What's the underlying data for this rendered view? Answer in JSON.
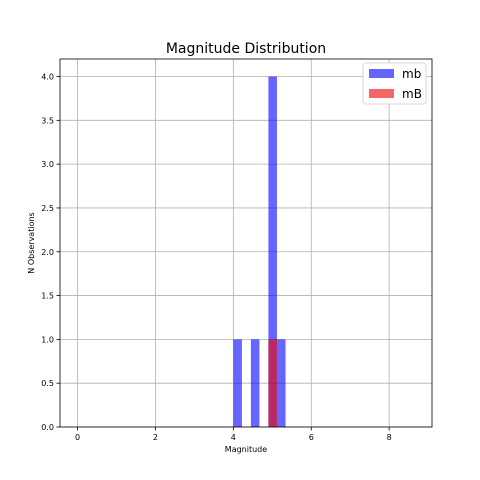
{
  "chart_data": {
    "type": "bar",
    "title": "Magnitude Distribution",
    "xlabel": "Magnitude",
    "ylabel": "N Observations",
    "xlim": [
      -0.45,
      9.1
    ],
    "ylim": [
      0,
      4.2
    ],
    "x_ticks": [
      0,
      2,
      4,
      6,
      8
    ],
    "y_ticks": [
      0.0,
      0.5,
      1.0,
      1.5,
      2.0,
      2.5,
      3.0,
      3.5,
      4.0
    ],
    "grid": true,
    "legend_position": "top-right",
    "series": [
      {
        "name": "mb",
        "color": "#0000ff",
        "opacity": 0.6,
        "bars": [
          {
            "x0": 4.0,
            "x1": 4.22,
            "value": 1
          },
          {
            "x0": 4.45,
            "x1": 4.67,
            "value": 1
          },
          {
            "x0": 4.9,
            "x1": 5.12,
            "value": 4
          },
          {
            "x0": 5.12,
            "x1": 5.34,
            "value": 1
          }
        ]
      },
      {
        "name": "mB",
        "color": "#ee0000",
        "opacity": 0.6,
        "bars": [
          {
            "x0": 4.9,
            "x1": 5.12,
            "value": 1
          }
        ]
      }
    ]
  }
}
